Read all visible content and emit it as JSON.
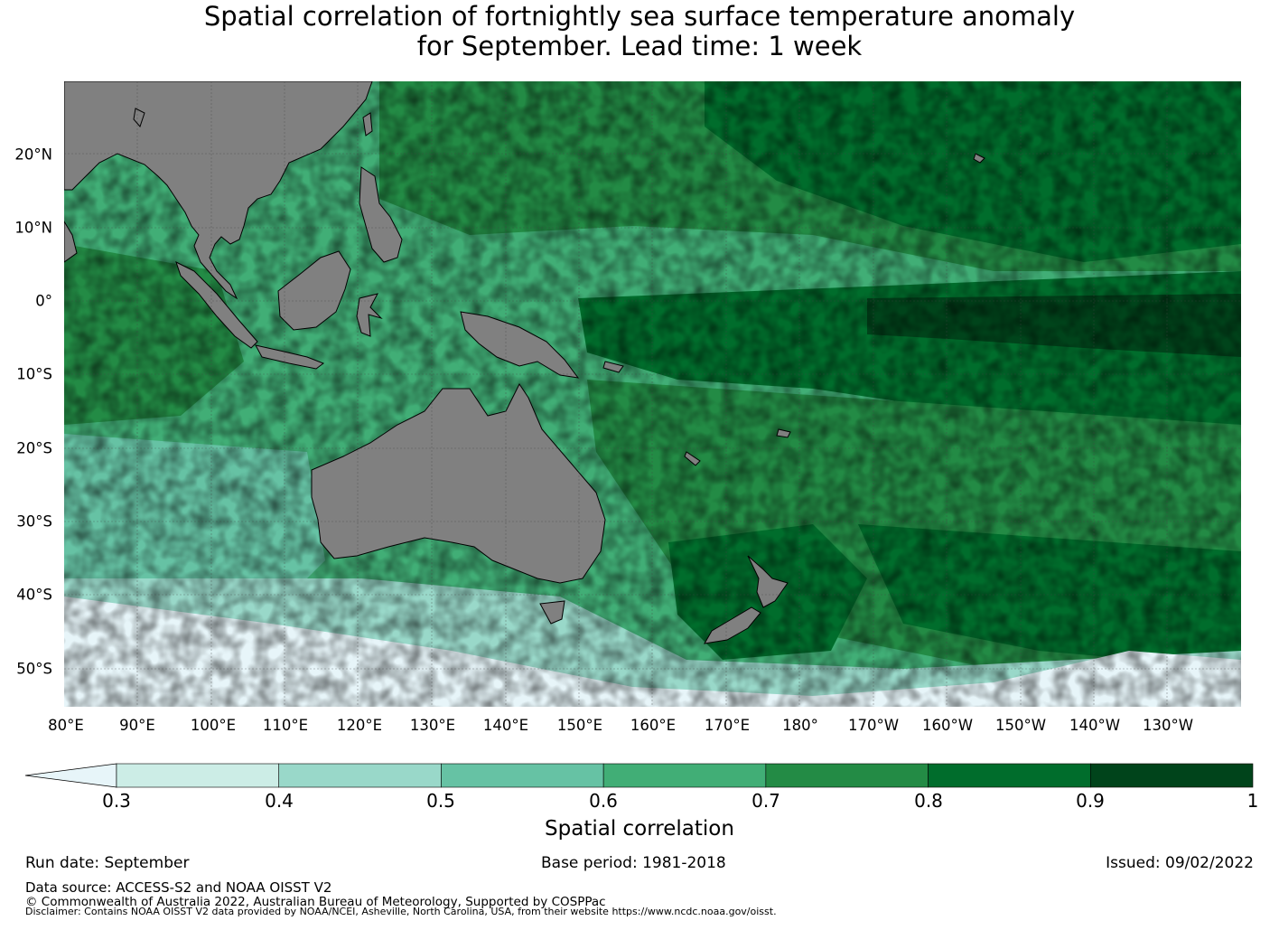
{
  "title_line1": "Spatial correlation of fortnightly sea surface temperature anomaly",
  "title_line2": "for September. Lead time: 1 week",
  "map": {
    "lon_labels": [
      "80°E",
      "90°E",
      "100°E",
      "110°E",
      "120°E",
      "130°E",
      "140°E",
      "150°E",
      "160°E",
      "170°E",
      "180°",
      "170°W",
      "160°W",
      "150°W",
      "140°W",
      "130°W"
    ],
    "lat_labels": [
      "20°N",
      "10°N",
      "0°",
      "10°S",
      "20°S",
      "30°S",
      "40°S",
      "50°S"
    ],
    "lon_range": [
      80,
      240
    ],
    "lat_range": [
      -55,
      30
    ],
    "land_color": "#808080",
    "gridlines": true
  },
  "colorbar": {
    "ticks": [
      "0.3",
      "0.4",
      "0.5",
      "0.6",
      "0.7",
      "0.8",
      "0.9",
      "1"
    ],
    "colors": [
      "#e7f5f9",
      "#ccede6",
      "#99d8c9",
      "#66c2a4",
      "#41ae76",
      "#238b45",
      "#006d2c",
      "#00441b"
    ],
    "extend": "min",
    "label": "Spatial correlation"
  },
  "footer": {
    "run_date": "Run date: September",
    "base_period": "Base period: 1981-2018",
    "issued": "Issued: 09/02/2022",
    "data_source": "Data source: ACCESS-S2 and NOAA OISST V2",
    "copyright": "© Commonwealth of Australia 2022, Australian Bureau of Meteorology, Supported by COSPPac",
    "disclaimer": "Disclaimer: Contains NOAA OISST V2 data provided by NOAA/NCEI, Asheville, North Carolina, USA, from their website https://www.ncdc.noaa.gov/oisst."
  }
}
